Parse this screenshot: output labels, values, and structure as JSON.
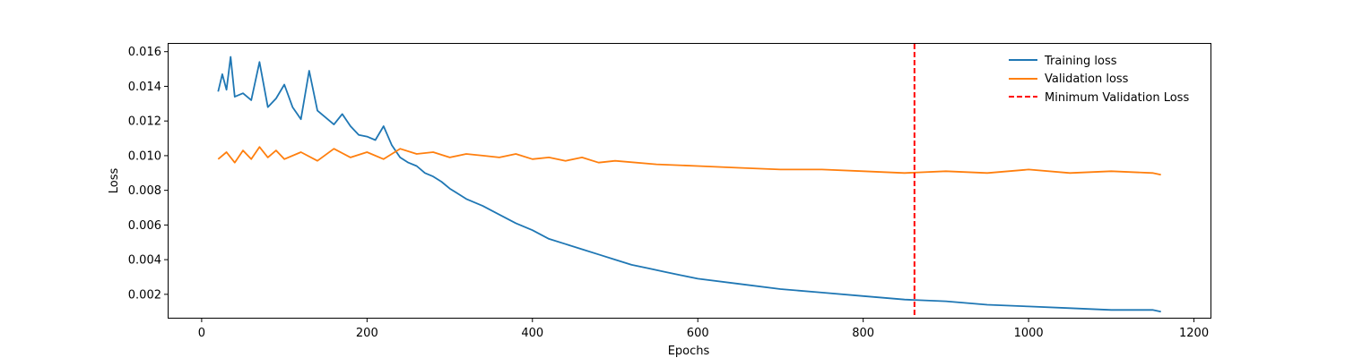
{
  "chart_data": {
    "type": "line",
    "title": "",
    "xlabel": "Epochs",
    "ylabel": "Loss",
    "xlim": [
      -40,
      1220
    ],
    "ylim": [
      0.00065,
      0.01645
    ],
    "xticks": [
      0,
      200,
      400,
      600,
      800,
      1000,
      1200
    ],
    "xtick_labels": [
      "0",
      "200",
      "400",
      "600",
      "800",
      "1000",
      "1200"
    ],
    "yticks": [
      0.002,
      0.004,
      0.006,
      0.008,
      0.01,
      0.012,
      0.014,
      0.016
    ],
    "ytick_labels": [
      "0.002",
      "0.004",
      "0.006",
      "0.008",
      "0.010",
      "0.012",
      "0.014",
      "0.016"
    ],
    "grid": false,
    "legend_position": "top-right",
    "series": [
      {
        "name": "Training loss",
        "color": "#1f77b4",
        "style": "solid",
        "x": [
          20,
          25,
          30,
          35,
          40,
          50,
          60,
          70,
          80,
          90,
          100,
          110,
          120,
          130,
          140,
          150,
          160,
          170,
          180,
          190,
          200,
          210,
          220,
          230,
          240,
          250,
          260,
          270,
          280,
          290,
          300,
          320,
          340,
          360,
          380,
          400,
          420,
          440,
          460,
          480,
          500,
          520,
          540,
          560,
          580,
          600,
          650,
          700,
          750,
          800,
          850,
          900,
          950,
          1000,
          1050,
          1100,
          1150,
          1160
        ],
        "y": [
          0.0137,
          0.0147,
          0.0138,
          0.0157,
          0.0134,
          0.0136,
          0.0132,
          0.0154,
          0.0128,
          0.0133,
          0.0141,
          0.0128,
          0.0121,
          0.0149,
          0.0126,
          0.0122,
          0.0118,
          0.0124,
          0.0117,
          0.0112,
          0.0111,
          0.0109,
          0.0117,
          0.0106,
          0.0099,
          0.0096,
          0.0094,
          0.009,
          0.0088,
          0.0085,
          0.0081,
          0.0075,
          0.0071,
          0.0066,
          0.0061,
          0.0057,
          0.0052,
          0.0049,
          0.0046,
          0.0043,
          0.004,
          0.0037,
          0.0035,
          0.0033,
          0.0031,
          0.0029,
          0.0026,
          0.0023,
          0.0021,
          0.0019,
          0.0017,
          0.0016,
          0.0014,
          0.0013,
          0.0012,
          0.0011,
          0.0011,
          0.001
        ]
      },
      {
        "name": "Validation loss",
        "color": "#ff7f0e",
        "style": "solid",
        "x": [
          20,
          30,
          40,
          50,
          60,
          70,
          80,
          90,
          100,
          120,
          140,
          160,
          180,
          200,
          220,
          240,
          260,
          280,
          300,
          320,
          340,
          360,
          380,
          400,
          420,
          440,
          460,
          480,
          500,
          550,
          600,
          650,
          700,
          750,
          800,
          850,
          900,
          950,
          1000,
          1050,
          1100,
          1150,
          1160
        ],
        "y": [
          0.0098,
          0.0102,
          0.0096,
          0.0103,
          0.0098,
          0.0105,
          0.0099,
          0.0103,
          0.0098,
          0.0102,
          0.0097,
          0.0104,
          0.0099,
          0.0102,
          0.0098,
          0.0104,
          0.0101,
          0.0102,
          0.0099,
          0.0101,
          0.01,
          0.0099,
          0.0101,
          0.0098,
          0.0099,
          0.0097,
          0.0099,
          0.0096,
          0.0097,
          0.0095,
          0.0094,
          0.0093,
          0.0092,
          0.0092,
          0.0091,
          0.009,
          0.0091,
          0.009,
          0.0092,
          0.009,
          0.0091,
          0.009,
          0.0089
        ]
      }
    ],
    "annotations": [
      {
        "type": "vline",
        "name": "Minimum Validation Loss",
        "x": 862,
        "color": "#ff0000",
        "style": "dashed"
      }
    ]
  }
}
